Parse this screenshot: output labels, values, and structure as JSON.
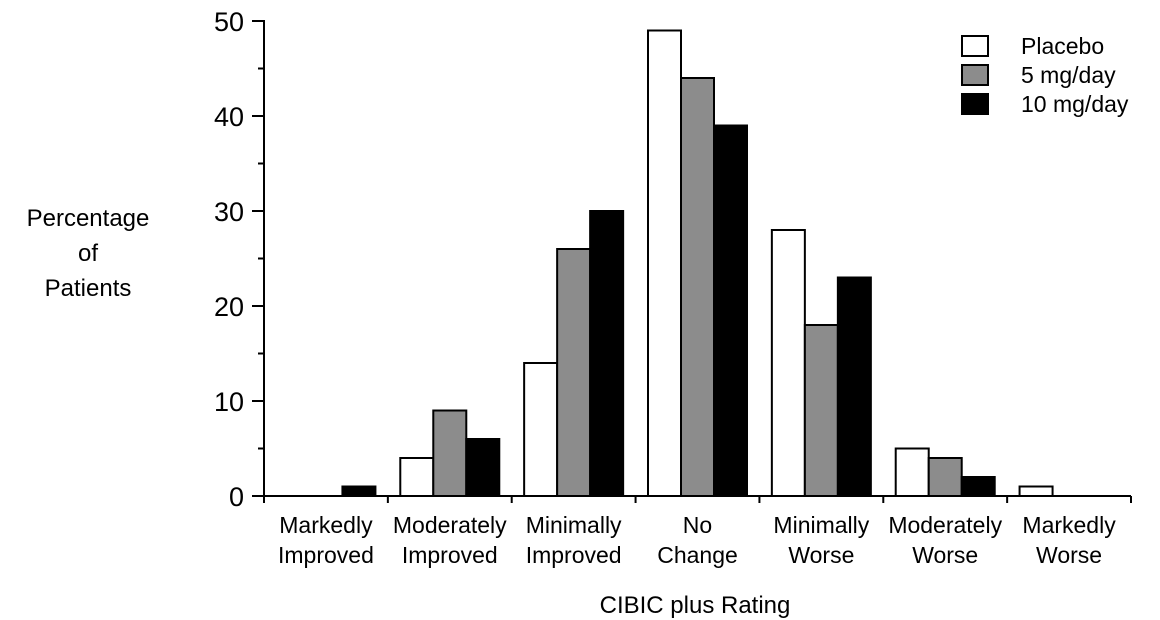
{
  "chart_data": {
    "type": "bar",
    "categories": [
      [
        "Markedly",
        "Improved"
      ],
      [
        "Moderately",
        "Improved"
      ],
      [
        "Minimally",
        "Improved"
      ],
      [
        "No",
        "Change"
      ],
      [
        "Minimally",
        "Worse"
      ],
      [
        "Moderately",
        "Worse"
      ],
      [
        "Markedly",
        "Worse"
      ]
    ],
    "series": [
      {
        "name": "Placebo",
        "color": "#ffffff",
        "values": [
          0,
          4,
          14,
          49,
          28,
          5,
          1
        ]
      },
      {
        "name": "5 mg/day",
        "color": "#8c8c8c",
        "values": [
          0,
          9,
          26,
          44,
          18,
          4,
          0
        ]
      },
      {
        "name": "10 mg/day",
        "color": "#000000",
        "values": [
          1,
          6,
          30,
          39,
          23,
          2,
          0
        ]
      }
    ],
    "xlabel": "CIBIC plus Rating",
    "ylabel": [
      "Percentage",
      "of",
      "Patients"
    ],
    "ylim": [
      0,
      50
    ],
    "yticks": [
      0,
      10,
      20,
      30,
      40,
      50
    ],
    "legend_position": "top-right",
    "grid": false
  }
}
